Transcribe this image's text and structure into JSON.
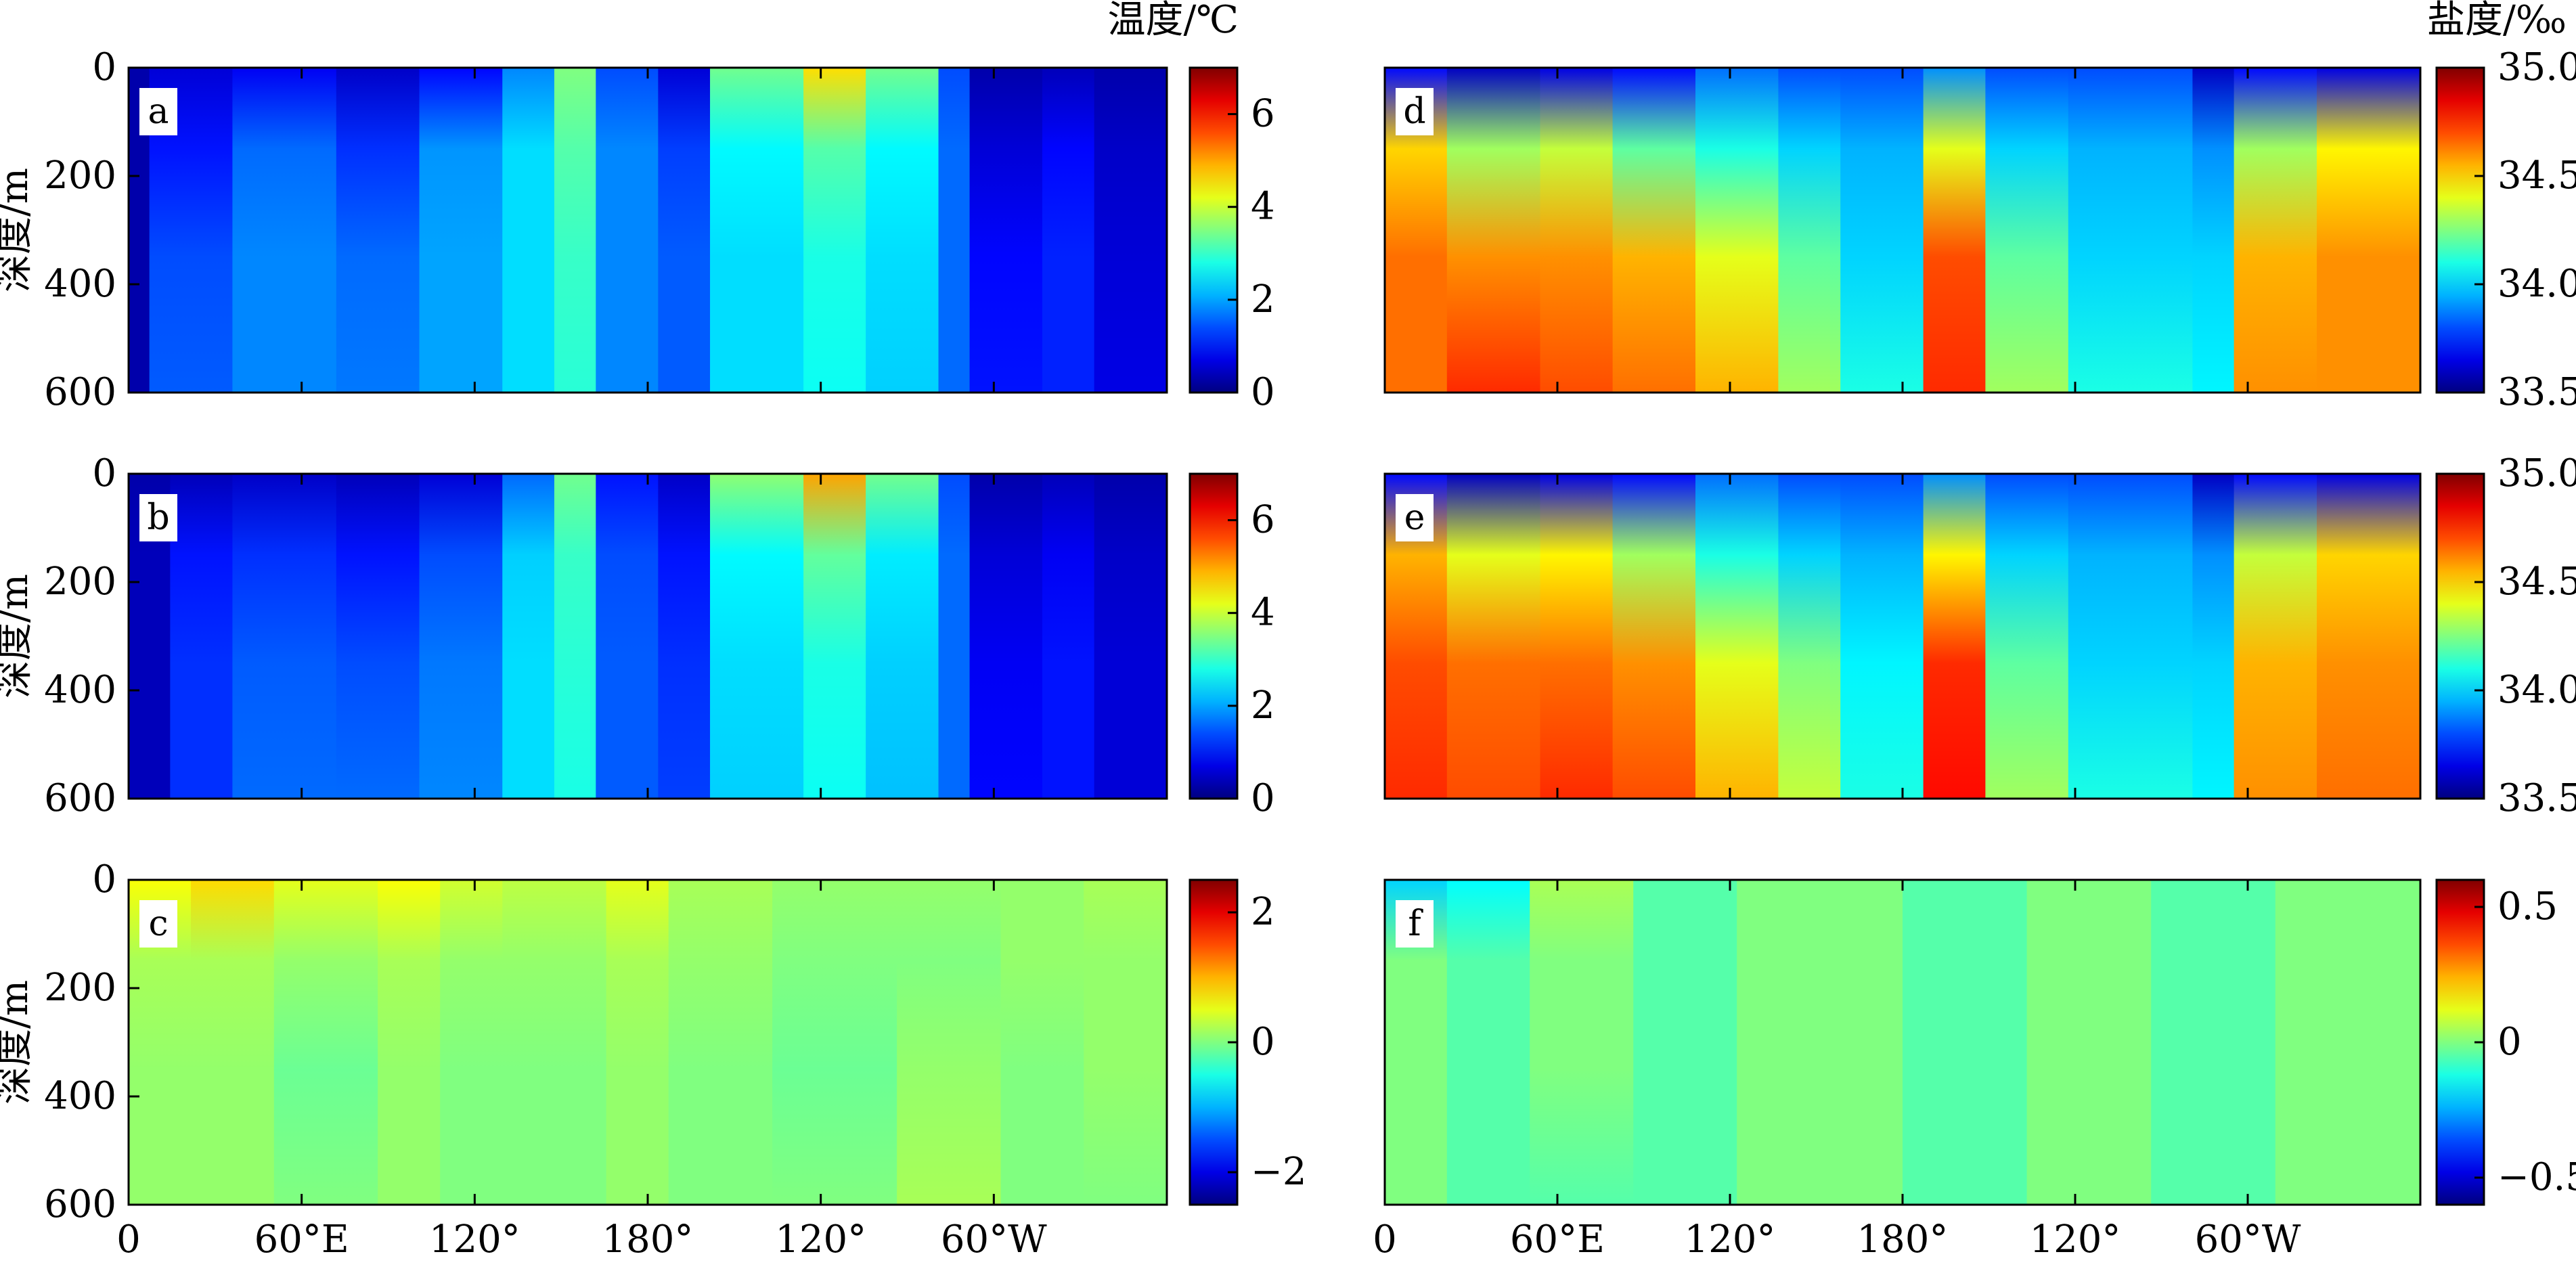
{
  "figure": {
    "temp_title": "温度/℃",
    "salt_title": "盐度/‰",
    "depth_label": "深度/m"
  },
  "chart_data": [
    {
      "panel": "a",
      "type": "heatmap",
      "variable": "temperature",
      "ylabel": "深度/m",
      "yticks": [
        "0",
        "200",
        "400",
        "600"
      ],
      "ylim": [
        0,
        600
      ],
      "xticks": [],
      "colorbar_ticks": [
        "0",
        "2",
        "4",
        "6"
      ],
      "colorbar_range": [
        0,
        7
      ],
      "colormap": "jet",
      "columns": [
        {
          "x0": 0,
          "x1": 0.02,
          "v": [
            0.3,
            0.3,
            0.3,
            0.3
          ]
        },
        {
          "x0": 0.02,
          "x1": 0.1,
          "v": [
            0.6,
            1.0,
            1.4,
            1.5
          ]
        },
        {
          "x0": 0.1,
          "x1": 0.2,
          "v": [
            0.8,
            1.6,
            1.8,
            1.8
          ]
        },
        {
          "x0": 0.2,
          "x1": 0.28,
          "v": [
            0.5,
            1.2,
            1.6,
            1.7
          ]
        },
        {
          "x0": 0.28,
          "x1": 0.36,
          "v": [
            0.9,
            1.9,
            2.0,
            2.0
          ]
        },
        {
          "x0": 0.36,
          "x1": 0.41,
          "v": [
            1.8,
            2.4,
            2.4,
            2.4
          ]
        },
        {
          "x0": 0.41,
          "x1": 0.45,
          "v": [
            3.5,
            3.2,
            3.0,
            2.9
          ]
        },
        {
          "x0": 0.45,
          "x1": 0.51,
          "v": [
            1.4,
            1.8,
            1.8,
            1.8
          ]
        },
        {
          "x0": 0.51,
          "x1": 0.56,
          "v": [
            0.6,
            1.3,
            1.5,
            1.5
          ]
        },
        {
          "x0": 0.56,
          "x1": 0.65,
          "v": [
            3.4,
            2.6,
            2.4,
            2.4
          ]
        },
        {
          "x0": 0.65,
          "x1": 0.71,
          "v": [
            4.6,
            3.2,
            2.8,
            2.7
          ]
        },
        {
          "x0": 0.71,
          "x1": 0.78,
          "v": [
            3.4,
            2.6,
            2.4,
            2.3
          ]
        },
        {
          "x0": 0.78,
          "x1": 0.81,
          "v": [
            1.4,
            1.6,
            1.6,
            1.6
          ]
        },
        {
          "x0": 0.81,
          "x1": 0.88,
          "v": [
            0.3,
            0.6,
            0.9,
            1.0
          ]
        },
        {
          "x0": 0.88,
          "x1": 0.93,
          "v": [
            0.4,
            0.9,
            1.1,
            1.1
          ]
        },
        {
          "x0": 0.93,
          "x1": 1.0,
          "v": [
            0.3,
            0.5,
            0.6,
            0.7
          ]
        }
      ]
    },
    {
      "panel": "b",
      "type": "heatmap",
      "variable": "temperature",
      "ylabel": "深度/m",
      "yticks": [
        "0",
        "200",
        "400",
        "600"
      ],
      "ylim": [
        0,
        600
      ],
      "xticks": [],
      "colorbar_ticks": [
        "0",
        "2",
        "4",
        "6"
      ],
      "colorbar_range": [
        0,
        7
      ],
      "colormap": "jet",
      "columns": [
        {
          "x0": 0,
          "x1": 0.04,
          "v": [
            0.3,
            0.4,
            0.4,
            0.4
          ]
        },
        {
          "x0": 0.04,
          "x1": 0.1,
          "v": [
            0.4,
            1.0,
            1.2,
            1.2
          ]
        },
        {
          "x0": 0.1,
          "x1": 0.2,
          "v": [
            0.5,
            1.2,
            1.5,
            1.6
          ]
        },
        {
          "x0": 0.2,
          "x1": 0.28,
          "v": [
            0.4,
            1.0,
            1.4,
            1.6
          ]
        },
        {
          "x0": 0.28,
          "x1": 0.36,
          "v": [
            0.6,
            1.4,
            1.7,
            1.8
          ]
        },
        {
          "x0": 0.36,
          "x1": 0.41,
          "v": [
            1.6,
            2.3,
            2.4,
            2.4
          ]
        },
        {
          "x0": 0.41,
          "x1": 0.45,
          "v": [
            3.4,
            3.0,
            2.9,
            2.8
          ]
        },
        {
          "x0": 0.45,
          "x1": 0.51,
          "v": [
            1.0,
            1.4,
            1.5,
            1.5
          ]
        },
        {
          "x0": 0.51,
          "x1": 0.56,
          "v": [
            0.5,
            1.0,
            1.2,
            1.3
          ]
        },
        {
          "x0": 0.56,
          "x1": 0.65,
          "v": [
            3.6,
            2.6,
            2.4,
            2.3
          ]
        },
        {
          "x0": 0.65,
          "x1": 0.71,
          "v": [
            5.0,
            3.3,
            2.8,
            2.7
          ]
        },
        {
          "x0": 0.71,
          "x1": 0.78,
          "v": [
            3.4,
            2.5,
            2.3,
            2.2
          ]
        },
        {
          "x0": 0.78,
          "x1": 0.81,
          "v": [
            1.4,
            1.6,
            1.6,
            1.6
          ]
        },
        {
          "x0": 0.81,
          "x1": 0.88,
          "v": [
            0.3,
            0.6,
            0.8,
            0.9
          ]
        },
        {
          "x0": 0.88,
          "x1": 0.93,
          "v": [
            0.4,
            0.8,
            1.0,
            1.0
          ]
        },
        {
          "x0": 0.93,
          "x1": 1.0,
          "v": [
            0.3,
            0.5,
            0.6,
            0.6
          ]
        }
      ]
    },
    {
      "panel": "c",
      "type": "heatmap",
      "variable": "temperature difference",
      "ylabel": "深度/m",
      "yticks": [
        "0",
        "200",
        "400",
        "600"
      ],
      "ylim": [
        0,
        600
      ],
      "xticks": [
        "0",
        "60°E",
        "120°",
        "180°",
        "120°",
        "60°W"
      ],
      "colorbar_ticks": [
        "2",
        "0",
        "−2"
      ],
      "colorbar_range": [
        -2.5,
        2.5
      ],
      "colormap": "jet",
      "columns": [
        {
          "x0": 0,
          "x1": 0.06,
          "v": [
            0.6,
            0.2,
            0.1,
            0.1
          ]
        },
        {
          "x0": 0.06,
          "x1": 0.14,
          "v": [
            0.8,
            0.2,
            0.1,
            0.1
          ]
        },
        {
          "x0": 0.14,
          "x1": 0.24,
          "v": [
            0.5,
            0.1,
            -0.1,
            0
          ]
        },
        {
          "x0": 0.24,
          "x1": 0.3,
          "v": [
            0.6,
            0.2,
            0.1,
            0.1
          ]
        },
        {
          "x0": 0.3,
          "x1": 0.36,
          "v": [
            0.4,
            0.1,
            0,
            0
          ]
        },
        {
          "x0": 0.36,
          "x1": 0.46,
          "v": [
            0.3,
            0.1,
            0,
            0
          ]
        },
        {
          "x0": 0.46,
          "x1": 0.52,
          "v": [
            0.5,
            0.2,
            0.1,
            0.1
          ]
        },
        {
          "x0": 0.52,
          "x1": 0.62,
          "v": [
            0.2,
            0.1,
            0,
            0
          ]
        },
        {
          "x0": 0.62,
          "x1": 0.74,
          "v": [
            0.1,
            0,
            -0.1,
            0
          ]
        },
        {
          "x0": 0.74,
          "x1": 0.84,
          "v": [
            0.1,
            0,
            0.1,
            0.2
          ]
        },
        {
          "x0": 0.84,
          "x1": 0.92,
          "v": [
            0.1,
            0.1,
            0,
            0
          ]
        },
        {
          "x0": 0.92,
          "x1": 1.0,
          "v": [
            0.2,
            0.1,
            0.1,
            0
          ]
        }
      ]
    },
    {
      "panel": "d",
      "type": "heatmap",
      "variable": "salinity",
      "ylabel": "",
      "yticks": [],
      "ylim": [
        0,
        600
      ],
      "xticks": [],
      "colorbar_ticks": [
        "35.0",
        "34.5",
        "34.0",
        "33.5"
      ],
      "colorbar_range": [
        33.5,
        35.0
      ],
      "colormap": "jet",
      "columns": [
        {
          "x0": 0,
          "x1": 0.06,
          "v": [
            33.7,
            34.5,
            34.65,
            34.65
          ]
        },
        {
          "x0": 0.06,
          "x1": 0.15,
          "v": [
            33.6,
            34.3,
            34.6,
            34.75
          ]
        },
        {
          "x0": 0.15,
          "x1": 0.22,
          "v": [
            33.65,
            34.35,
            34.6,
            34.7
          ]
        },
        {
          "x0": 0.22,
          "x1": 0.3,
          "v": [
            33.7,
            34.2,
            34.55,
            34.65
          ]
        },
        {
          "x0": 0.3,
          "x1": 0.38,
          "v": [
            33.85,
            34.1,
            34.4,
            34.55
          ]
        },
        {
          "x0": 0.38,
          "x1": 0.44,
          "v": [
            33.8,
            34.0,
            34.2,
            34.3
          ]
        },
        {
          "x0": 0.44,
          "x1": 0.52,
          "v": [
            33.8,
            33.95,
            34.0,
            34.1
          ]
        },
        {
          "x0": 0.52,
          "x1": 0.58,
          "v": [
            33.9,
            34.4,
            34.7,
            34.75
          ]
        },
        {
          "x0": 0.58,
          "x1": 0.66,
          "v": [
            33.8,
            34.0,
            34.2,
            34.3
          ]
        },
        {
          "x0": 0.66,
          "x1": 0.78,
          "v": [
            33.8,
            33.95,
            34.0,
            34.1
          ]
        },
        {
          "x0": 0.78,
          "x1": 0.82,
          "v": [
            33.6,
            33.9,
            34.0,
            34.05
          ]
        },
        {
          "x0": 0.82,
          "x1": 0.9,
          "v": [
            33.7,
            34.3,
            34.55,
            34.6
          ]
        },
        {
          "x0": 0.9,
          "x1": 1.0,
          "v": [
            33.65,
            34.45,
            34.6,
            34.6
          ]
        }
      ]
    },
    {
      "panel": "e",
      "type": "heatmap",
      "variable": "salinity",
      "ylabel": "",
      "yticks": [],
      "ylim": [
        0,
        600
      ],
      "xticks": [],
      "colorbar_ticks": [
        "35.0",
        "34.5",
        "34.0",
        "33.5"
      ],
      "colorbar_range": [
        33.5,
        35.0
      ],
      "colormap": "jet",
      "columns": [
        {
          "x0": 0,
          "x1": 0.06,
          "v": [
            33.7,
            34.55,
            34.7,
            34.75
          ]
        },
        {
          "x0": 0.06,
          "x1": 0.15,
          "v": [
            33.6,
            34.4,
            34.65,
            34.7
          ]
        },
        {
          "x0": 0.15,
          "x1": 0.22,
          "v": [
            33.65,
            34.45,
            34.65,
            34.75
          ]
        },
        {
          "x0": 0.22,
          "x1": 0.3,
          "v": [
            33.7,
            34.3,
            34.6,
            34.7
          ]
        },
        {
          "x0": 0.3,
          "x1": 0.38,
          "v": [
            33.85,
            34.1,
            34.4,
            34.55
          ]
        },
        {
          "x0": 0.38,
          "x1": 0.44,
          "v": [
            33.8,
            34.0,
            34.25,
            34.35
          ]
        },
        {
          "x0": 0.44,
          "x1": 0.52,
          "v": [
            33.8,
            33.95,
            34.05,
            34.1
          ]
        },
        {
          "x0": 0.52,
          "x1": 0.58,
          "v": [
            33.9,
            34.45,
            34.75,
            34.8
          ]
        },
        {
          "x0": 0.58,
          "x1": 0.66,
          "v": [
            33.8,
            34.0,
            34.2,
            34.3
          ]
        },
        {
          "x0": 0.66,
          "x1": 0.78,
          "v": [
            33.8,
            33.95,
            34.0,
            34.1
          ]
        },
        {
          "x0": 0.78,
          "x1": 0.82,
          "v": [
            33.6,
            33.9,
            34.0,
            34.05
          ]
        },
        {
          "x0": 0.82,
          "x1": 0.9,
          "v": [
            33.7,
            34.35,
            34.55,
            34.6
          ]
        },
        {
          "x0": 0.9,
          "x1": 1.0,
          "v": [
            33.65,
            34.5,
            34.6,
            34.65
          ]
        }
      ]
    },
    {
      "panel": "f",
      "type": "heatmap",
      "variable": "salinity difference",
      "ylabel": "",
      "yticks": [],
      "ylim": [
        0,
        600
      ],
      "xticks": [
        "0",
        "60°E",
        "120°",
        "180°",
        "120°",
        "60°W"
      ],
      "colorbar_ticks": [
        "0.5",
        "0",
        "−0.5"
      ],
      "colorbar_range": [
        -0.6,
        0.6
      ],
      "colormap": "jet",
      "columns": [
        {
          "x0": 0,
          "x1": 0.06,
          "v": [
            -0.2,
            0,
            0,
            0
          ]
        },
        {
          "x0": 0.06,
          "x1": 0.14,
          "v": [
            -0.15,
            -0.05,
            -0.05,
            -0.05
          ]
        },
        {
          "x0": 0.14,
          "x1": 0.24,
          "v": [
            0.05,
            0,
            0,
            -0.05
          ]
        },
        {
          "x0": 0.24,
          "x1": 0.34,
          "v": [
            -0.05,
            -0.05,
            -0.05,
            -0.05
          ]
        },
        {
          "x0": 0.34,
          "x1": 0.5,
          "v": [
            0,
            0,
            0,
            0
          ]
        },
        {
          "x0": 0.5,
          "x1": 0.62,
          "v": [
            -0.05,
            -0.05,
            -0.05,
            -0.05
          ]
        },
        {
          "x0": 0.62,
          "x1": 0.74,
          "v": [
            0,
            0,
            0,
            0
          ]
        },
        {
          "x0": 0.74,
          "x1": 0.86,
          "v": [
            -0.05,
            -0.05,
            -0.05,
            -0.05
          ]
        },
        {
          "x0": 0.86,
          "x1": 1.0,
          "v": [
            0,
            0,
            0,
            0
          ]
        }
      ]
    }
  ]
}
